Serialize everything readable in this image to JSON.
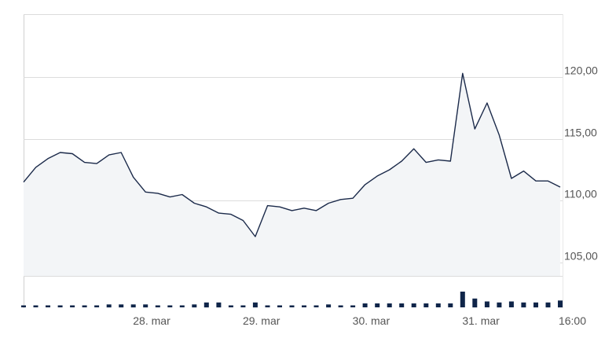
{
  "chart_data": {
    "type": "area",
    "title": "",
    "xlabel": "",
    "ylabel": "",
    "ylim": [
      100,
      125
    ],
    "y_ticks": [
      "105,00",
      "110,00",
      "115,00",
      "120,00"
    ],
    "y_tick_values": [
      105,
      110,
      115,
      120
    ],
    "x_ticks": [
      "28. mar",
      "29. mar",
      "30. mar",
      "31. mar",
      "16:00"
    ],
    "x_tick_positions": [
      10.5,
      19.5,
      28.5,
      37.5,
      45
    ],
    "grid": true,
    "colors": {
      "line": "#1b2a4a",
      "area": "#f3f5f7",
      "volume": "#0f2549",
      "grid": "#dcdcdc"
    },
    "series": [
      {
        "values": [
          111.5,
          112.7,
          113.4,
          113.9,
          113.8,
          113.1,
          113.0,
          113.7,
          113.9,
          111.9,
          110.7,
          110.6,
          110.3,
          110.5,
          109.8,
          109.5,
          109.0,
          108.9,
          108.4,
          107.1,
          109.6,
          109.5,
          109.2,
          109.4,
          109.2,
          109.8,
          110.1,
          110.2,
          111.3,
          112.0,
          112.5,
          113.2,
          114.2,
          113.1,
          113.3,
          113.2,
          120.3,
          115.8,
          117.9,
          115.3,
          111.8,
          112.4,
          111.6,
          111.6,
          111.1
        ]
      }
    ],
    "volume": [
      1,
      1,
      1,
      1,
      1,
      1,
      1,
      1.5,
      1.5,
      1.5,
      1.5,
      1,
      1,
      1,
      1.5,
      2.5,
      2.5,
      1,
      1,
      2.5,
      1,
      1,
      1,
      1,
      1,
      1.5,
      1,
      1,
      2,
      2,
      2,
      2,
      2,
      2,
      2,
      2,
      8,
      4.5,
      3,
      2.5,
      3,
      2.5,
      2.5,
      2.5,
      3.5
    ]
  }
}
